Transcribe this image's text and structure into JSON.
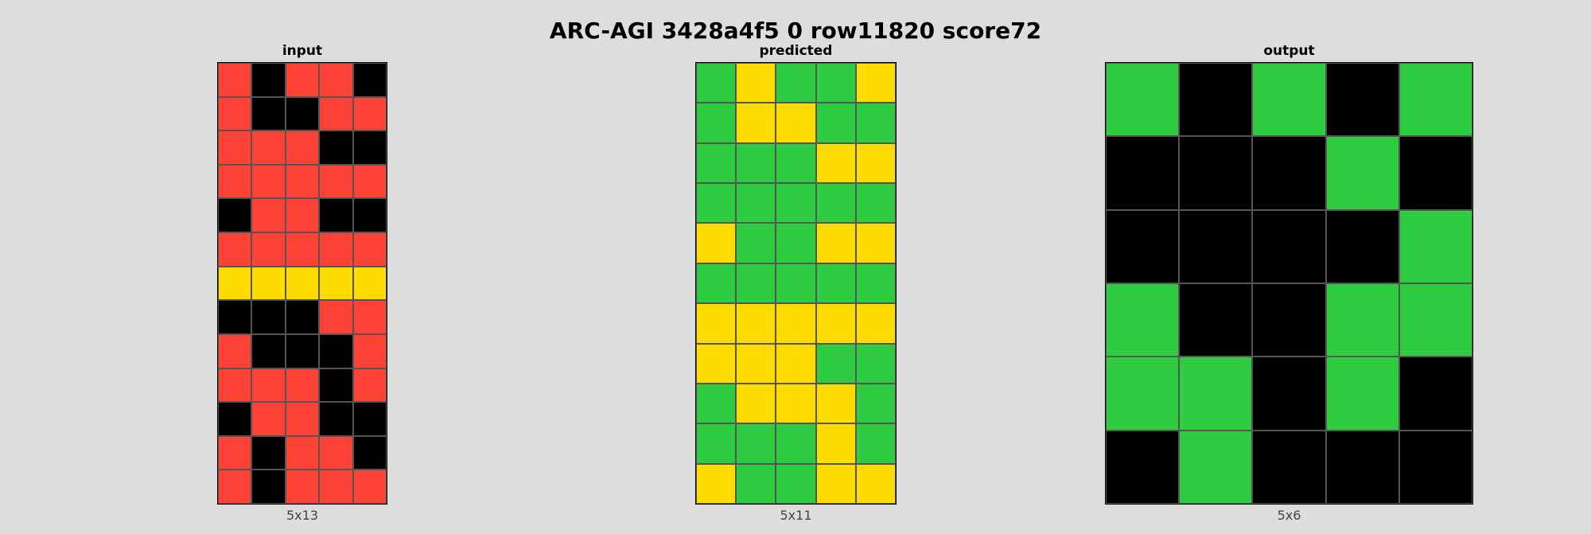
{
  "title": "ARC-AGI 3428a4f5 0 row11820 score72",
  "palette": {
    "0": "#000000",
    "2": "#ff4136",
    "3": "#2ecc40",
    "4": "#ffdc00"
  },
  "panels": [
    {
      "id": "input",
      "label": "input",
      "dims": "5x13",
      "grid": [
        [
          2,
          0,
          2,
          2,
          0
        ],
        [
          2,
          0,
          0,
          2,
          2
        ],
        [
          2,
          2,
          2,
          0,
          0
        ],
        [
          2,
          2,
          2,
          2,
          2
        ],
        [
          0,
          2,
          2,
          0,
          0
        ],
        [
          2,
          2,
          2,
          2,
          2
        ],
        [
          4,
          4,
          4,
          4,
          4
        ],
        [
          0,
          0,
          0,
          2,
          2
        ],
        [
          2,
          0,
          0,
          0,
          2
        ],
        [
          2,
          2,
          2,
          0,
          2
        ],
        [
          0,
          2,
          2,
          0,
          0
        ],
        [
          2,
          0,
          2,
          2,
          0
        ],
        [
          2,
          0,
          2,
          2,
          2
        ]
      ]
    },
    {
      "id": "predicted",
      "label": "predicted",
      "dims": "5x11",
      "grid": [
        [
          3,
          4,
          3,
          3,
          4
        ],
        [
          3,
          4,
          4,
          3,
          3
        ],
        [
          3,
          3,
          3,
          4,
          4
        ],
        [
          3,
          3,
          3,
          3,
          3
        ],
        [
          4,
          3,
          3,
          4,
          4
        ],
        [
          3,
          3,
          3,
          3,
          3
        ],
        [
          4,
          4,
          4,
          4,
          4
        ],
        [
          4,
          4,
          4,
          3,
          3
        ],
        [
          3,
          4,
          4,
          4,
          3
        ],
        [
          3,
          3,
          3,
          4,
          3
        ],
        [
          4,
          3,
          3,
          4,
          4
        ]
      ]
    },
    {
      "id": "output",
      "label": "output",
      "dims": "5x6",
      "grid": [
        [
          3,
          0,
          3,
          0,
          3
        ],
        [
          0,
          0,
          0,
          3,
          0
        ],
        [
          0,
          0,
          0,
          0,
          3
        ],
        [
          3,
          0,
          0,
          3,
          3
        ],
        [
          3,
          3,
          0,
          3,
          0
        ],
        [
          0,
          3,
          0,
          0,
          0
        ]
      ]
    }
  ]
}
